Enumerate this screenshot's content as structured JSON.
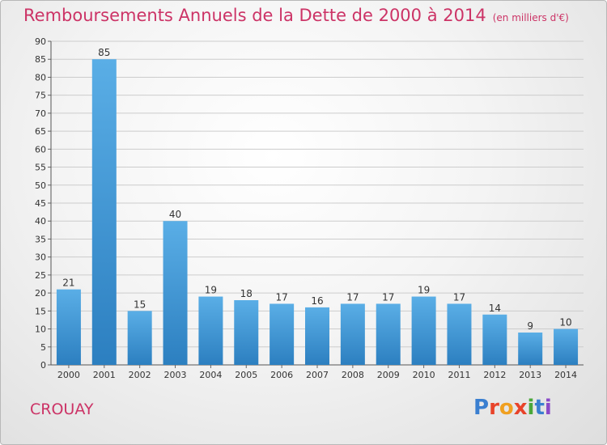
{
  "header": {
    "title": "Remboursements Annuels de la Dette de 2000 à 2014",
    "unit": "(en milliers d'€)"
  },
  "footer": {
    "commune": "CROUAY",
    "logo": "Proxiti"
  },
  "colors": {
    "title": "#cc3366",
    "bar_light": "#5aaee6",
    "bar_dark": "#2c7fc0",
    "grid": "#cccccc"
  },
  "chart_data": {
    "type": "bar",
    "title": "Remboursements Annuels de la Dette de 2000 à 2014",
    "xlabel": "",
    "ylabel": "",
    "categories": [
      "2000",
      "2001",
      "2002",
      "2003",
      "2004",
      "2005",
      "2006",
      "2007",
      "2008",
      "2009",
      "2010",
      "2011",
      "2012",
      "2013",
      "2014"
    ],
    "values": [
      21,
      85,
      15,
      40,
      19,
      18,
      17,
      16,
      17,
      17,
      19,
      17,
      14,
      9,
      10
    ],
    "ylim": [
      0,
      90
    ],
    "yticks": [
      0,
      5,
      10,
      15,
      20,
      25,
      30,
      35,
      40,
      45,
      50,
      55,
      60,
      65,
      70,
      75,
      80,
      85,
      90
    ],
    "grid": true,
    "legend": "none"
  }
}
